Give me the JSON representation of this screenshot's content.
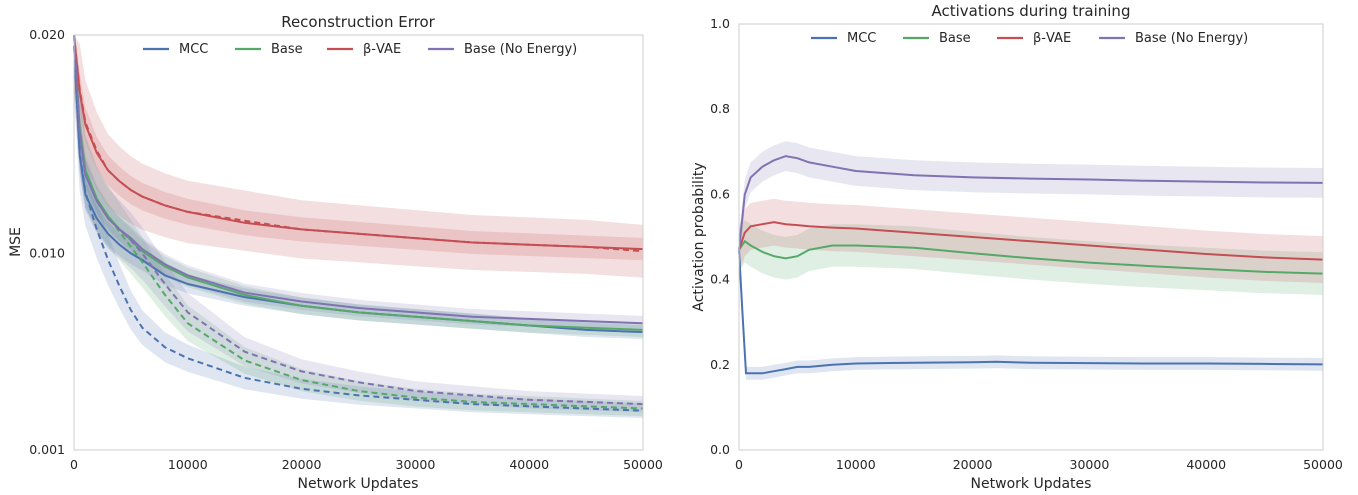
{
  "chart_data": [
    {
      "type": "line",
      "title": "Reconstruction Error",
      "xlabel": "Network Updates",
      "ylabel": "MSE",
      "xlim": [
        0,
        50000
      ],
      "ylim": [
        0.001,
        0.02
      ],
      "xticks": [
        0,
        10000,
        20000,
        30000,
        40000,
        50000
      ],
      "xtick_labels": [
        "0",
        "10000",
        "20000",
        "30000",
        "40000",
        "50000"
      ],
      "yticks": [
        0.001,
        0.01,
        0.02
      ],
      "ytick_labels": [
        "0.001",
        "0.010",
        "0.020"
      ],
      "grid": false,
      "legend": "top-center",
      "series": [
        {
          "name": "MCC",
          "color": "#4c72b0",
          "style": "solid",
          "x": [
            0,
            500,
            1000,
            2000,
            3000,
            4000,
            5000,
            6000,
            8000,
            10000,
            15000,
            20000,
            25000,
            30000,
            35000,
            40000,
            45000,
            50000
          ],
          "y": [
            0.0195,
            0.0145,
            0.0127,
            0.0116,
            0.0109,
            0.0104,
            0.01,
            0.0097,
            0.009,
            0.0086,
            0.008,
            0.0076,
            0.0073,
            0.0071,
            0.0069,
            0.0067,
            0.0065,
            0.0064
          ]
        },
        {
          "name": "Base",
          "color": "#55a868",
          "style": "solid",
          "x": [
            0,
            500,
            1000,
            2000,
            3000,
            4000,
            5000,
            6000,
            8000,
            10000,
            15000,
            20000,
            25000,
            30000,
            35000,
            40000,
            45000,
            50000
          ],
          "y": [
            0.02,
            0.0157,
            0.0138,
            0.0125,
            0.0117,
            0.0111,
            0.0106,
            0.0101,
            0.0094,
            0.0089,
            0.0081,
            0.0076,
            0.0073,
            0.0071,
            0.0069,
            0.0067,
            0.0066,
            0.0065
          ]
        },
        {
          "name": "β-VAE",
          "color": "#c44e52",
          "style": "solid",
          "x": [
            0,
            500,
            1000,
            2000,
            3000,
            4000,
            5000,
            6000,
            8000,
            10000,
            15000,
            20000,
            25000,
            30000,
            35000,
            40000,
            45000,
            50000
          ],
          "y": [
            0.02,
            0.0174,
            0.0159,
            0.0146,
            0.0138,
            0.0133,
            0.0129,
            0.0126,
            0.0122,
            0.0119,
            0.0114,
            0.0111,
            0.0109,
            0.0107,
            0.0105,
            0.0104,
            0.0103,
            0.0102
          ]
        },
        {
          "name": "Base (No Energy)",
          "color": "#8172b2",
          "style": "solid",
          "x": [
            0,
            500,
            1000,
            2000,
            3000,
            4000,
            5000,
            6000,
            8000,
            10000,
            15000,
            20000,
            25000,
            30000,
            35000,
            40000,
            45000,
            50000
          ],
          "y": [
            0.02,
            0.0155,
            0.0136,
            0.0124,
            0.0116,
            0.0111,
            0.0107,
            0.0102,
            0.0095,
            0.009,
            0.0082,
            0.0078,
            0.0075,
            0.0073,
            0.0071,
            0.007,
            0.0069,
            0.0068
          ]
        },
        {
          "name": "",
          "color": "#4c72b0",
          "style": "dashed",
          "x": [
            0,
            500,
            1000,
            2000,
            3000,
            4000,
            5000,
            6000,
            8000,
            10000,
            15000,
            20000,
            25000,
            30000,
            35000,
            40000,
            45000,
            50000
          ],
          "y": [
            0.0195,
            0.0146,
            0.0128,
            0.0111,
            0.0097,
            0.0085,
            0.0074,
            0.0066,
            0.0057,
            0.0052,
            0.0043,
            0.0038,
            0.0035,
            0.0033,
            0.0031,
            0.003,
            0.0029,
            0.0028
          ]
        },
        {
          "name": "",
          "color": "#55a868",
          "style": "dashed",
          "x": [
            0,
            500,
            1000,
            2000,
            3000,
            4000,
            5000,
            6000,
            8000,
            10000,
            15000,
            20000,
            25000,
            30000,
            35000,
            40000,
            45000,
            50000
          ],
          "y": [
            0.02,
            0.0157,
            0.0138,
            0.0125,
            0.0117,
            0.011,
            0.0103,
            0.0096,
            0.0081,
            0.0068,
            0.0051,
            0.0042,
            0.0037,
            0.0034,
            0.0032,
            0.0031,
            0.003,
            0.0029
          ]
        },
        {
          "name": "",
          "color": "#c44e52",
          "style": "dashed",
          "x": [
            0,
            500,
            1000,
            2000,
            3000,
            4000,
            5000,
            6000,
            8000,
            10000,
            15000,
            20000,
            25000,
            30000,
            35000,
            40000,
            45000,
            50000
          ],
          "y": [
            0.02,
            0.0175,
            0.016,
            0.0147,
            0.0138,
            0.0133,
            0.0129,
            0.0126,
            0.0122,
            0.0119,
            0.0115,
            0.0111,
            0.0109,
            0.0107,
            0.0105,
            0.0104,
            0.0103,
            0.0101
          ]
        },
        {
          "name": "",
          "color": "#8172b2",
          "style": "dashed",
          "x": [
            0,
            500,
            1000,
            2000,
            3000,
            4000,
            5000,
            6000,
            8000,
            10000,
            15000,
            20000,
            25000,
            30000,
            35000,
            40000,
            45000,
            50000
          ],
          "y": [
            0.02,
            0.0155,
            0.0136,
            0.0124,
            0.0116,
            0.0111,
            0.0106,
            0.01,
            0.0086,
            0.0073,
            0.0055,
            0.0046,
            0.0041,
            0.0037,
            0.0035,
            0.0033,
            0.0032,
            0.0031
          ]
        }
      ]
    },
    {
      "type": "line",
      "title": "Activations during training",
      "xlabel": "Network Updates",
      "ylabel": "Activation probability",
      "xlim": [
        0,
        50000
      ],
      "ylim": [
        0.0,
        1.0
      ],
      "xticks": [
        0,
        10000,
        20000,
        30000,
        40000,
        50000
      ],
      "xtick_labels": [
        "0",
        "10000",
        "20000",
        "30000",
        "40000",
        "50000"
      ],
      "yticks": [
        0.0,
        0.2,
        0.4,
        0.6,
        0.8,
        1.0
      ],
      "ytick_labels": [
        "0.0",
        "0.2",
        "0.4",
        "0.6",
        "0.8",
        "1.0"
      ],
      "grid": false,
      "legend": "top-center",
      "series": [
        {
          "name": "MCC",
          "color": "#4c72b0",
          "style": "solid",
          "x": [
            0,
            300,
            600,
            1000,
            2000,
            3000,
            4000,
            5000,
            6000,
            8000,
            10000,
            15000,
            20000,
            22000,
            25000,
            30000,
            35000,
            40000,
            45000,
            50000
          ],
          "y": [
            0.47,
            0.32,
            0.18,
            0.18,
            0.18,
            0.185,
            0.19,
            0.195,
            0.195,
            0.2,
            0.203,
            0.205,
            0.206,
            0.207,
            0.205,
            0.204,
            0.203,
            0.203,
            0.202,
            0.201
          ]
        },
        {
          "name": "Base",
          "color": "#55a868",
          "style": "solid",
          "x": [
            0,
            500,
            1000,
            2000,
            3000,
            4000,
            5000,
            6000,
            8000,
            10000,
            15000,
            20000,
            25000,
            30000,
            35000,
            40000,
            45000,
            50000
          ],
          "y": [
            0.47,
            0.49,
            0.48,
            0.465,
            0.455,
            0.45,
            0.455,
            0.47,
            0.48,
            0.48,
            0.475,
            0.462,
            0.45,
            0.44,
            0.432,
            0.425,
            0.418,
            0.414
          ]
        },
        {
          "name": "β-VAE",
          "color": "#c44e52",
          "style": "solid",
          "x": [
            0,
            500,
            1000,
            2000,
            3000,
            4000,
            5000,
            6000,
            8000,
            10000,
            15000,
            20000,
            25000,
            30000,
            35000,
            40000,
            45000,
            50000
          ],
          "y": [
            0.47,
            0.51,
            0.525,
            0.53,
            0.535,
            0.53,
            0.528,
            0.525,
            0.522,
            0.52,
            0.51,
            0.5,
            0.49,
            0.48,
            0.47,
            0.46,
            0.452,
            0.447
          ]
        },
        {
          "name": "Base (No Energy)",
          "color": "#8172b2",
          "style": "solid",
          "x": [
            0,
            500,
            1000,
            2000,
            3000,
            4000,
            5000,
            6000,
            8000,
            10000,
            15000,
            20000,
            25000,
            30000,
            35000,
            40000,
            45000,
            50000
          ],
          "y": [
            0.47,
            0.6,
            0.64,
            0.665,
            0.68,
            0.69,
            0.685,
            0.675,
            0.665,
            0.655,
            0.645,
            0.64,
            0.637,
            0.635,
            0.632,
            0.63,
            0.628,
            0.627
          ]
        }
      ]
    }
  ]
}
